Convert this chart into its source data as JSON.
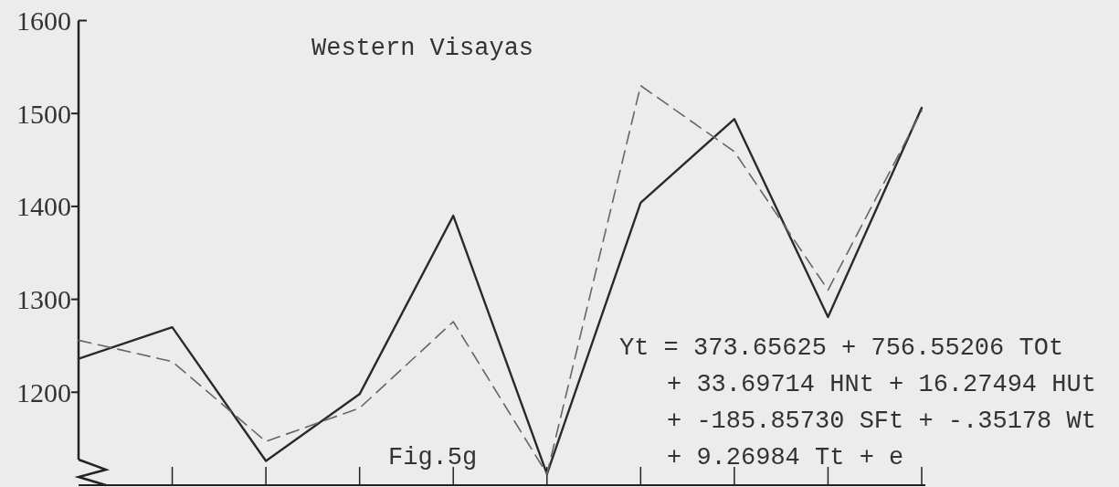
{
  "chart_data": {
    "type": "line",
    "title": "Western Visayas",
    "categories": [
      null,
      null,
      null,
      null,
      null,
      null,
      null,
      null,
      null,
      null
    ],
    "series": [
      {
        "color": "#2a2a2a",
        "line_style": "solid",
        "values": [
          1236,
          1270,
          1126,
          1198,
          1390,
          1112,
          1404,
          1494,
          1281,
          1506
        ]
      },
      {
        "color": "#666666",
        "line_style": "dashed",
        "values": [
          1256,
          1233,
          1147,
          1183,
          1276,
          1112,
          1530,
          1459,
          1310,
          1503
        ]
      }
    ],
    "ylim": [
      1100,
      1600
    ],
    "yticks": [
      1200,
      1300,
      1400,
      1500,
      1600
    ],
    "annotations": [
      "Fig.5g",
      "Yt = 373.65625 + 756.55206 TOt",
      "+ 33.69714 HNt + 16.27494 HUt",
      "+ -185.85730 SFt + -.35178 Wt",
      "+ 9.26984 Tt + e"
    ]
  }
}
